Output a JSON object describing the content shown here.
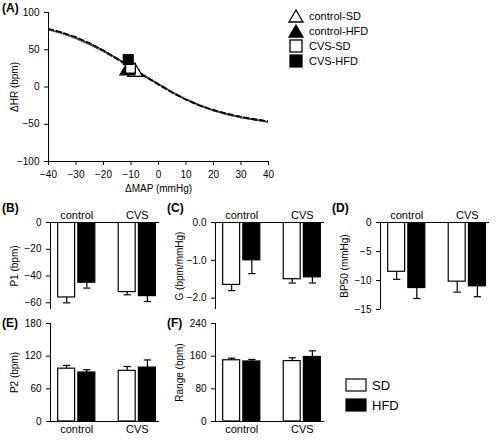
{
  "chart_data": [
    {
      "type": "line",
      "title": "(A)",
      "x_label": "ΔMAP (mmHg)",
      "y_label": "ΔHR (bpm)",
      "x": [
        -40,
        -35,
        -30,
        -25,
        -20,
        -15,
        -10,
        -5,
        0,
        5,
        10,
        15,
        20,
        25,
        30,
        35,
        40
      ],
      "xlim": [
        -40,
        40
      ],
      "xticks": [
        -40,
        -30,
        -20,
        -10,
        0,
        10,
        20,
        30,
        40
      ],
      "ylim": [
        -100,
        100
      ],
      "yticks": [
        -100,
        -50,
        0,
        50,
        100
      ],
      "legend": "top-right",
      "series": [
        {
          "name": "control-SD",
          "color": "#555555",
          "marker": "open-triangle",
          "line_style": "solid",
          "values": [
            77,
            72,
            66,
            58,
            49,
            38,
            27,
            15,
            4,
            -7,
            -17,
            -25,
            -32,
            -37,
            -41,
            -44,
            -47
          ],
          "point": {
            "x": -8.5,
            "y": 20
          }
        },
        {
          "name": "control-HFD",
          "color": "#000000",
          "marker": "filled-triangle",
          "line_style": "dashed",
          "values": [
            78,
            73,
            66,
            58,
            48,
            37,
            26,
            14,
            3,
            -8,
            -17,
            -25,
            -31,
            -36,
            -40,
            -43,
            -46
          ],
          "point": {
            "x": -11.3,
            "y": 22
          }
        },
        {
          "name": "CVS-SD",
          "color": "#555555",
          "marker": "open-square",
          "line_style": "solid",
          "values": [
            77,
            72,
            65,
            57,
            48,
            38,
            27,
            15,
            4,
            -7,
            -16,
            -24,
            -31,
            -37,
            -41,
            -44,
            -47
          ],
          "point": {
            "x": -10.2,
            "y": 25
          }
        },
        {
          "name": "CVS-HFD",
          "color": "#000000",
          "marker": "filled-square",
          "line_style": "dashed",
          "values": [
            78,
            73,
            67,
            59,
            49,
            38,
            27,
            15,
            4,
            -7,
            -17,
            -25,
            -31,
            -36,
            -40,
            -44,
            -46
          ],
          "point": {
            "x": -11,
            "y": 37
          }
        }
      ]
    },
    {
      "type": "bar",
      "title": "(B)",
      "y_label": "P1 (bpm)",
      "categories": [
        "control",
        "CVS"
      ],
      "ylim": [
        -65,
        0
      ],
      "yticks": [
        -60,
        -40,
        -20,
        0
      ],
      "series": [
        {
          "name": "SD",
          "color": "#ffffff",
          "values": [
            -56,
            -52
          ],
          "errors": [
            4,
            2
          ]
        },
        {
          "name": "HFD",
          "color": "#000000",
          "values": [
            -45,
            -55
          ],
          "errors": [
            4,
            4
          ]
        }
      ]
    },
    {
      "type": "bar",
      "title": "(C)",
      "y_label": "G (bpm/mmHg)",
      "categories": [
        "control",
        "CVS"
      ],
      "ylim": [
        -2.3,
        0
      ],
      "yticks": [
        -2,
        -1,
        0
      ],
      "series": [
        {
          "name": "SD",
          "color": "#ffffff",
          "values": [
            -1.65,
            -1.5
          ],
          "errors": [
            0.15,
            0.1
          ]
        },
        {
          "name": "HFD",
          "color": "#000000",
          "values": [
            -1.0,
            -1.45
          ],
          "errors": [
            0.35,
            0.15
          ]
        }
      ]
    },
    {
      "type": "bar",
      "title": "(D)",
      "y_label": "BP50 (mmHg)",
      "categories": [
        "control",
        "CVS"
      ],
      "ylim": [
        -15,
        0
      ],
      "yticks": [
        -15,
        -10,
        -5,
        0
      ],
      "series": [
        {
          "name": "SD",
          "color": "#ffffff",
          "values": [
            -8.5,
            -10.2
          ],
          "errors": [
            1.3,
            1.8
          ]
        },
        {
          "name": "HFD",
          "color": "#000000",
          "values": [
            -11.3,
            -11
          ],
          "errors": [
            1.8,
            1.8
          ]
        }
      ]
    },
    {
      "type": "bar",
      "title": "(E)",
      "y_label": "P2 (bpm)",
      "categories": [
        "control",
        "CVS"
      ],
      "ylim": [
        0,
        180
      ],
      "yticks": [
        0,
        60,
        120,
        180
      ],
      "series": [
        {
          "name": "SD",
          "color": "#ffffff",
          "values": [
            97,
            93
          ],
          "errors": [
            6,
            8
          ]
        },
        {
          "name": "HFD",
          "color": "#000000",
          "values": [
            90,
            99
          ],
          "errors": [
            5,
            14
          ]
        }
      ]
    },
    {
      "type": "bar",
      "title": "(F)",
      "y_label": "Range (bpm)",
      "categories": [
        "control",
        "CVS"
      ],
      "ylim": [
        0,
        240
      ],
      "yticks": [
        0,
        80,
        160,
        240
      ],
      "legend": "right",
      "series": [
        {
          "name": "SD",
          "color": "#ffffff",
          "values": [
            150,
            148
          ],
          "errors": [
            5,
            8
          ]
        },
        {
          "name": "HFD",
          "color": "#000000",
          "values": [
            147,
            158
          ],
          "errors": [
            5,
            15
          ]
        }
      ]
    }
  ]
}
